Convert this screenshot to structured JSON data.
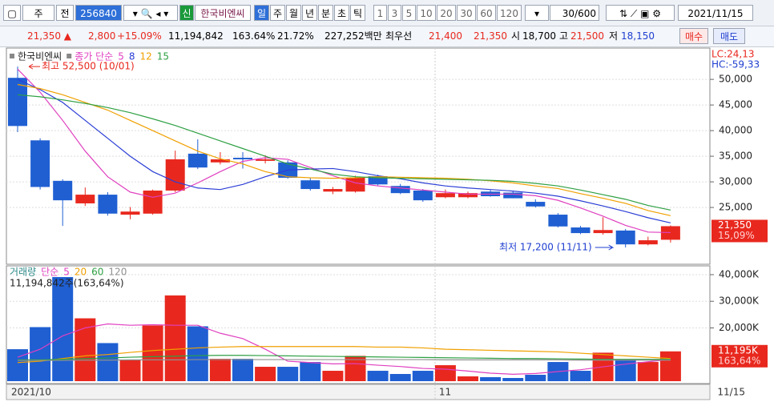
{
  "toolbar": {
    "period": "주",
    "prefix": "전",
    "code": "256840",
    "badge": "신",
    "name": "한국비엔씨",
    "periods": [
      "일",
      "주",
      "월",
      "년",
      "분",
      "초",
      "틱"
    ],
    "intervals": [
      "1",
      "3",
      "5",
      "10",
      "20",
      "30",
      "60",
      "120"
    ],
    "count": "30/600",
    "date": "2021/11/15"
  },
  "info_bar": {
    "price": "21,350 ▲",
    "change": "2,800",
    "change_pct": "+15.09%",
    "volume": "11,194,842",
    "volume_ratio": "163.64%",
    "turnover": "21.72%",
    "market_cap": "227,252백만",
    "best_label": "최우선",
    "ask": "21,400",
    "bid": "21,350",
    "open_label": "시",
    "open": "18,700",
    "high_label": "고",
    "high": "21,500",
    "low_label": "저",
    "low": "18,150",
    "buy": "매수",
    "sell": "매도"
  },
  "chart_data": [
    {
      "type": "candlestick",
      "legend_label": "종가 단순",
      "ohlc": {
        "name": "한국비엔씨",
        "up_color": "#e8281e",
        "down_color": "#1f5fd2",
        "open": [
          50300,
          38100,
          30200,
          25800,
          27500,
          23600,
          23800,
          28300,
          35500,
          33800,
          34700,
          34100,
          33800,
          30300,
          28100,
          28100,
          31100,
          29200,
          28300,
          27000,
          27000,
          28100,
          27900,
          26100,
          23600,
          21100,
          20000,
          20500,
          17800,
          18700
        ],
        "high": [
          52500,
          38500,
          30500,
          28900,
          28000,
          25100,
          28500,
          36100,
          38300,
          35800,
          35800,
          35200,
          34200,
          30800,
          29000,
          31200,
          31400,
          29600,
          28600,
          28500,
          28100,
          28400,
          28300,
          26600,
          23900,
          21400,
          23100,
          20800,
          19300,
          21500
        ],
        "low": [
          39700,
          28500,
          21400,
          25300,
          23400,
          22700,
          23600,
          28000,
          32500,
          33400,
          32600,
          33600,
          30600,
          28300,
          27600,
          27900,
          29300,
          27600,
          26100,
          26800,
          26800,
          27100,
          26800,
          25000,
          21100,
          19800,
          19700,
          17200,
          17600,
          18150
        ],
        "close": [
          40900,
          29000,
          26400,
          27500,
          23800,
          24200,
          28300,
          34400,
          32800,
          34400,
          34400,
          34400,
          30800,
          28600,
          28600,
          30800,
          29500,
          27800,
          26400,
          27800,
          27800,
          27200,
          26800,
          25200,
          21300,
          20000,
          20600,
          17800,
          18600,
          21350
        ]
      },
      "series": [
        {
          "name": "5",
          "color": "#e040c0",
          "values": [
            52000,
            47500,
            42000,
            36000,
            31000,
            28000,
            27000,
            27800,
            29800,
            32000,
            34000,
            34700,
            34400,
            32800,
            31200,
            29800,
            29200,
            28800,
            28400,
            28000,
            27600,
            27600,
            27600,
            27300,
            26400,
            24900,
            23300,
            21500,
            20200,
            20100
          ]
        },
        {
          "name": "8",
          "color": "#2c3fd6",
          "values": [
            50000,
            48000,
            45500,
            42000,
            38500,
            35000,
            32000,
            30000,
            28800,
            28500,
            29500,
            31000,
            32300,
            32500,
            32600,
            32000,
            31200,
            30600,
            29800,
            29200,
            28800,
            28500,
            28200,
            27800,
            27200,
            26300,
            25300,
            24200,
            23000,
            22000
          ]
        },
        {
          "name": "12",
          "color": "#f0a000",
          "values": [
            49000,
            48200,
            47000,
            45500,
            44000,
            42000,
            40000,
            38000,
            36000,
            34500,
            33500,
            32000,
            31000,
            30800,
            30700,
            30800,
            31000,
            30900,
            30800,
            30700,
            30500,
            30200,
            29800,
            29200,
            28700,
            27700,
            26800,
            25800,
            24400,
            23400
          ]
        },
        {
          "name": "15",
          "color": "#2ea043",
          "values": [
            47000,
            46600,
            46000,
            45300,
            44500,
            43500,
            42300,
            41000,
            39500,
            38000,
            36500,
            35000,
            33500,
            32500,
            31500,
            31000,
            30800,
            30700,
            30600,
            30500,
            30400,
            30300,
            30100,
            29700,
            29200,
            28400,
            27500,
            26600,
            25400,
            24500
          ]
        }
      ],
      "ylim": [
        14700,
        55800
      ],
      "yticks": [
        {
          "value": 50000,
          "label": "50,000"
        },
        {
          "value": 45000,
          "label": "45,000"
        },
        {
          "value": 40000,
          "label": "40,000"
        },
        {
          "value": 35000,
          "label": "35,000"
        },
        {
          "value": 30000,
          "label": "30,000"
        },
        {
          "value": 25000,
          "label": "25,000"
        }
      ],
      "annotations": [
        {
          "text": "최고 52,500 (10/01)",
          "value": 52500,
          "color": "#e8281e"
        },
        {
          "text": "최저 17,200 (11/11)",
          "value": 17200,
          "color": "#1f3fd0"
        }
      ],
      "indicators": [
        "LC:24,13",
        "HC:-59,33"
      ],
      "last_label": {
        "value": 21350,
        "label": "21,350",
        "change": "15,09%"
      }
    },
    {
      "type": "bar",
      "name": "거래량",
      "legend_label": "단순",
      "header": "11,194,842주(163,64%)",
      "categories": [
        "2021/10",
        null,
        null,
        null,
        null,
        null,
        null,
        null,
        null,
        null,
        null,
        null,
        null,
        null,
        null,
        null,
        null,
        null,
        null,
        "11",
        null,
        null,
        null,
        null,
        null,
        null,
        null,
        null,
        null,
        "11/15"
      ],
      "values": [
        12000,
        20300,
        39100,
        23600,
        14300,
        8100,
        20900,
        32200,
        20600,
        8400,
        8400,
        5400,
        5400,
        7200,
        3900,
        9500,
        3900,
        2700,
        3900,
        6000,
        1800,
        1500,
        1200,
        2400,
        7200,
        3900,
        10700,
        8100,
        7200,
        11195
      ],
      "up_color": "#e8281e",
      "down_color": "#1f5fd2",
      "series": [
        {
          "name": "5",
          "color": "#e040c0",
          "values": [
            9000,
            12000,
            17000,
            20000,
            21500,
            21000,
            21200,
            21000,
            21000,
            18000,
            16000,
            12000,
            7500,
            7000,
            6500,
            6600,
            6000,
            5500,
            4800,
            4500,
            3800,
            3000,
            2600,
            2900,
            3600,
            4300,
            5400,
            6400,
            7300,
            8200
          ]
        },
        {
          "name": "20",
          "color": "#f0a000",
          "values": [
            7000,
            7500,
            8500,
            9500,
            10000,
            10800,
            11500,
            12000,
            12500,
            12800,
            13000,
            13000,
            13000,
            13000,
            13000,
            13000,
            12800,
            12800,
            12500,
            12000,
            11800,
            11600,
            11400,
            11200,
            11000,
            10500,
            10000,
            9500,
            9000,
            8500
          ]
        },
        {
          "name": "60",
          "color": "#2ea043",
          "values": [
            8000,
            8000,
            8200,
            8500,
            8700,
            9000,
            9200,
            9400,
            9600,
            9700,
            9700,
            9600,
            9500,
            9400,
            9300,
            9200,
            9100,
            9000,
            8900,
            8800,
            8700,
            8600,
            8500,
            8500,
            8400,
            8300,
            8200,
            8200,
            8200,
            8200
          ]
        },
        {
          "name": "120",
          "color": "#909090",
          "values": [
            7800,
            7800,
            7800,
            7900,
            7900,
            8000,
            8000,
            8000,
            8100,
            8100,
            8100,
            8100,
            8100,
            8100,
            8100,
            8100,
            8100,
            8100,
            8100,
            8000,
            8000,
            8000,
            8000,
            8000,
            8000,
            7900,
            7900,
            7900,
            7900,
            7900
          ]
        }
      ],
      "ylim": [
        0,
        42700
      ],
      "yticks": [
        {
          "value": 40000,
          "label": "40,000K"
        },
        {
          "value": 30000,
          "label": "30,000K"
        },
        {
          "value": 20000,
          "label": "20,000K"
        }
      ],
      "last_label": {
        "value": 11195,
        "label": "11,195K",
        "change": "163,64%"
      }
    }
  ]
}
